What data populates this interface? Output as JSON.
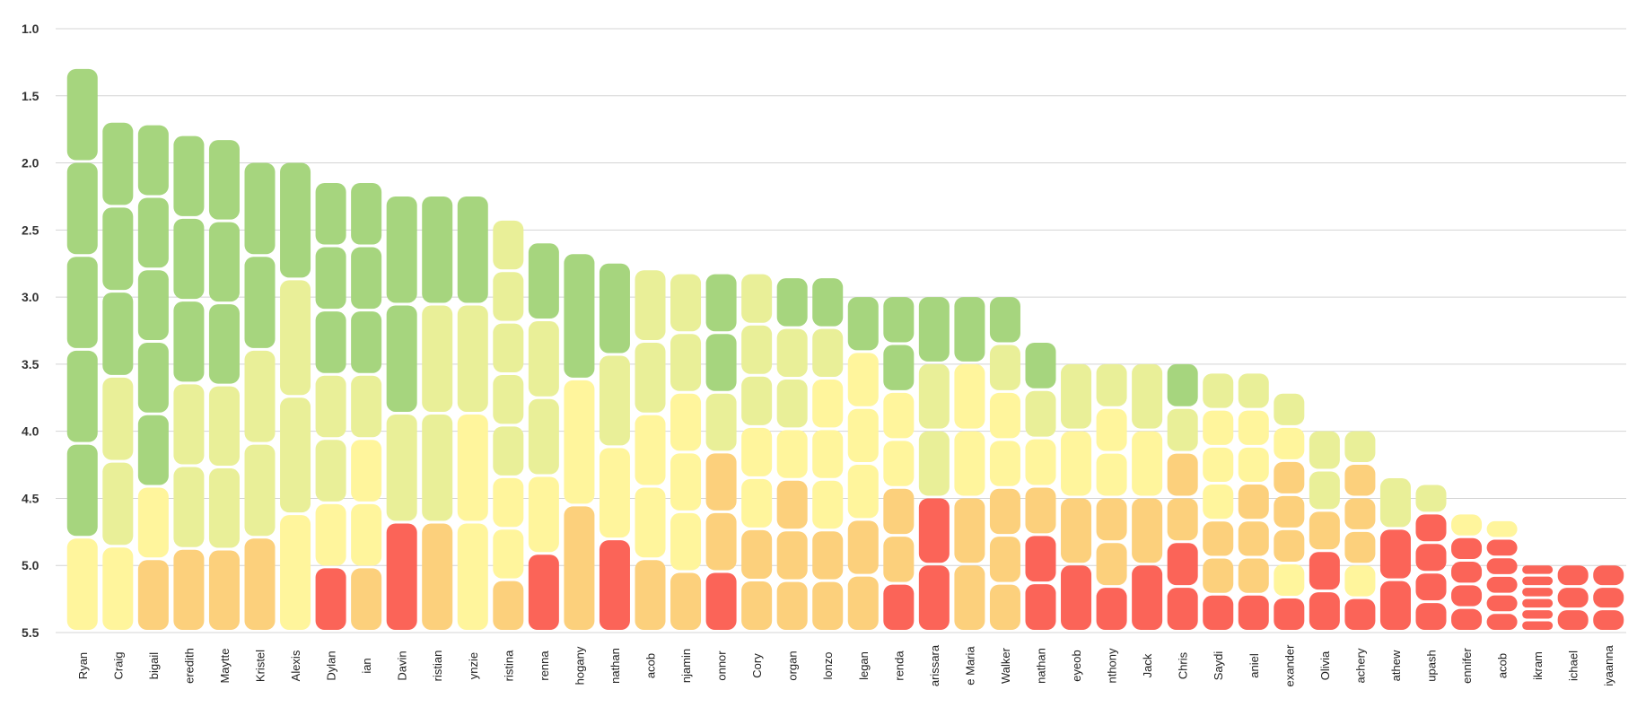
{
  "chart_data": {
    "type": "bar",
    "title": "",
    "xlabel": "",
    "ylabel": "",
    "ylim": [
      1.0,
      5.5
    ],
    "y_inverted": true,
    "y_ticks": [
      "1.0",
      "1.5",
      "2.0",
      "2.5",
      "3.0",
      "3.5",
      "4.0",
      "4.5",
      "5.0",
      "5.5"
    ],
    "grid": true,
    "legend": "none",
    "colors": {
      "green_dark": "#a6d57e",
      "green_light": "#d6ea92",
      "yellow_green": "#e9ef98",
      "yellow": "#fff59c",
      "orange": "#fcd07c",
      "red": "#fb6458"
    },
    "categories": [
      "Ryan",
      "Craig",
      "bigail",
      "eredith",
      "Maytte",
      "Kristel",
      "Alexis",
      "Dylan",
      "ian",
      "Davin",
      "ristian",
      "ynzie",
      "ristina",
      "renna",
      "hogany",
      "nathan",
      "acob",
      "njamin",
      "onnor",
      "Cory",
      "organ",
      "lonzo",
      "legan",
      "renda",
      "arissara",
      "e Maria",
      "Walker",
      "nathan",
      "eyeob",
      "nthony",
      "Jack",
      "Chris",
      "Saydi",
      "aniel",
      "exander",
      "Olivia",
      "achery",
      "athew",
      "upash",
      "ennifer",
      "acob",
      "ikram",
      "ichael",
      "iyaanna"
    ],
    "values": [
      1.3,
      1.7,
      1.72,
      1.8,
      1.83,
      2.0,
      2.0,
      2.15,
      2.15,
      2.25,
      2.25,
      2.25,
      2.43,
      2.6,
      2.68,
      2.75,
      2.8,
      2.83,
      2.83,
      2.83,
      2.86,
      2.86,
      3.0,
      3.0,
      3.0,
      3.0,
      3.0,
      3.34,
      3.5,
      3.5,
      3.5,
      3.5,
      3.57,
      3.57,
      3.72,
      4.0,
      4.0,
      4.35,
      4.4,
      4.62,
      4.67,
      5.0,
      5.0,
      5.0
    ],
    "stacks": [
      [
        "green_dark",
        "green_dark",
        "green_dark",
        "green_dark",
        "green_dark",
        "yellow"
      ],
      [
        "green_dark",
        "green_dark",
        "green_dark",
        "yellow_green",
        "yellow_green",
        "yellow"
      ],
      [
        "green_dark",
        "green_dark",
        "green_dark",
        "green_dark",
        "green_dark",
        "yellow",
        "orange"
      ],
      [
        "green_dark",
        "green_dark",
        "green_dark",
        "yellow_green",
        "yellow_green",
        "orange"
      ],
      [
        "green_dark",
        "green_dark",
        "green_dark",
        "yellow_green",
        "yellow_green",
        "orange"
      ],
      [
        "green_dark",
        "green_dark",
        "yellow_green",
        "yellow_green",
        "orange"
      ],
      [
        "green_dark",
        "yellow_green",
        "yellow_green",
        "yellow"
      ],
      [
        "green_dark",
        "green_dark",
        "green_dark",
        "yellow_green",
        "yellow_green",
        "yellow",
        "red"
      ],
      [
        "green_dark",
        "green_dark",
        "green_dark",
        "yellow_green",
        "yellow",
        "yellow",
        "orange"
      ],
      [
        "green_dark",
        "green_dark",
        "yellow_green",
        "red"
      ],
      [
        "green_dark",
        "yellow_green",
        "yellow_green",
        "orange"
      ],
      [
        "green_dark",
        "yellow_green",
        "yellow",
        "yellow"
      ],
      [
        "yellow_green",
        "yellow_green",
        "yellow_green",
        "yellow_green",
        "yellow_green",
        "yellow",
        "yellow",
        "orange"
      ],
      [
        "green_dark",
        "yellow_green",
        "yellow_green",
        "yellow",
        "red"
      ],
      [
        "green_dark",
        "yellow",
        "orange"
      ],
      [
        "green_dark",
        "yellow_green",
        "yellow",
        "red"
      ],
      [
        "yellow_green",
        "yellow_green",
        "yellow",
        "yellow",
        "orange"
      ],
      [
        "yellow_green",
        "yellow_green",
        "yellow",
        "yellow",
        "yellow",
        "orange"
      ],
      [
        "green_dark",
        "green_dark",
        "yellow_green",
        "orange",
        "orange",
        "red"
      ],
      [
        "yellow_green",
        "yellow_green",
        "yellow_green",
        "yellow",
        "yellow",
        "orange",
        "orange"
      ],
      [
        "green_dark",
        "yellow_green",
        "yellow_green",
        "yellow",
        "orange",
        "orange",
        "orange"
      ],
      [
        "green_dark",
        "yellow_green",
        "yellow",
        "yellow",
        "yellow",
        "orange",
        "orange"
      ],
      [
        "green_dark",
        "yellow",
        "yellow",
        "yellow",
        "orange",
        "orange"
      ],
      [
        "green_dark",
        "green_dark",
        "yellow",
        "yellow",
        "orange",
        "orange",
        "red"
      ],
      [
        "green_dark",
        "yellow_green",
        "yellow_green",
        "red",
        "red"
      ],
      [
        "green_dark",
        "yellow",
        "yellow",
        "orange",
        "orange"
      ],
      [
        "green_dark",
        "yellow_green",
        "yellow",
        "yellow",
        "orange",
        "orange",
        "orange"
      ],
      [
        "green_dark",
        "yellow_green",
        "yellow",
        "orange",
        "red",
        "red"
      ],
      [
        "yellow_green",
        "yellow",
        "orange",
        "red"
      ],
      [
        "yellow_green",
        "yellow",
        "yellow",
        "orange",
        "orange",
        "red"
      ],
      [
        "yellow_green",
        "yellow",
        "orange",
        "red"
      ],
      [
        "green_dark",
        "yellow_green",
        "orange",
        "orange",
        "red",
        "red"
      ],
      [
        "yellow_green",
        "yellow",
        "yellow",
        "yellow",
        "orange",
        "orange",
        "red"
      ],
      [
        "yellow_green",
        "yellow",
        "yellow",
        "orange",
        "orange",
        "orange",
        "red"
      ],
      [
        "yellow_green",
        "yellow",
        "orange",
        "orange",
        "orange",
        "yellow",
        "red"
      ],
      [
        "yellow_green",
        "yellow_green",
        "orange",
        "red",
        "red"
      ],
      [
        "yellow_green",
        "orange",
        "orange",
        "orange",
        "yellow",
        "red"
      ],
      [
        "yellow_green",
        "red",
        "red"
      ],
      [
        "yellow_green",
        "red",
        "red",
        "red",
        "red"
      ],
      [
        "yellow",
        "red",
        "red",
        "red",
        "red"
      ],
      [
        "yellow",
        "red",
        "red",
        "red",
        "red",
        "red"
      ],
      [
        "red",
        "red",
        "red",
        "red",
        "red",
        "red"
      ],
      [
        "red",
        "red",
        "red"
      ],
      [
        "red",
        "red",
        "red"
      ]
    ]
  }
}
